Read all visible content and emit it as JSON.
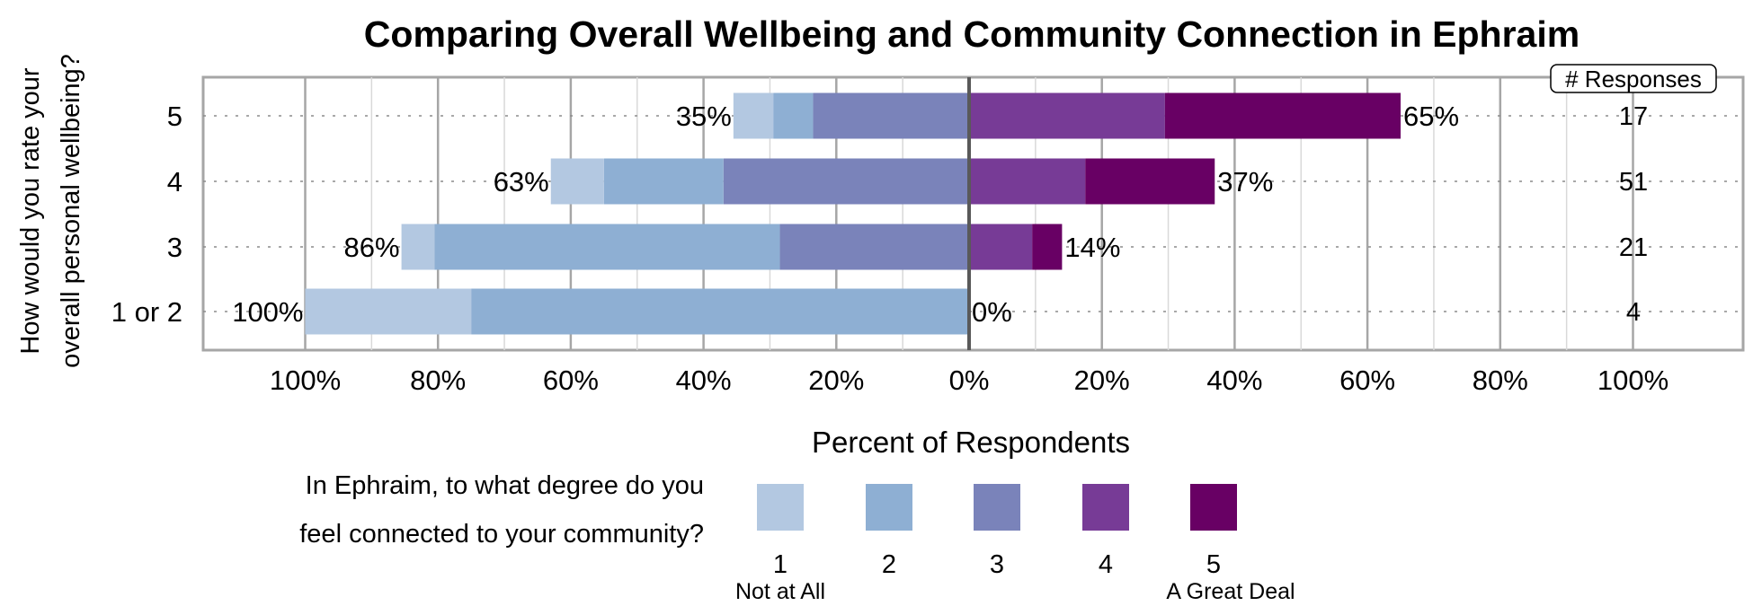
{
  "chart_data": {
    "type": "bar",
    "orientation": "horizontal-diverging-stacked",
    "title": "Comparing Overall Wellbeing and Community Connection in Ephraim",
    "xlabel": "Percent of Respondents",
    "ylabel_lines": [
      "How would you rate your",
      "overall personal wellbeing?"
    ],
    "xlim": [
      -100,
      100
    ],
    "x_ticks": [
      -100,
      -80,
      -60,
      -40,
      -20,
      0,
      20,
      40,
      60,
      80,
      100
    ],
    "x_tick_labels": [
      "100%",
      "80%",
      "60%",
      "40%",
      "20%",
      "0%",
      "20%",
      "40%",
      "60%",
      "80%",
      "100%"
    ],
    "grid": true,
    "categories": [
      "5",
      "4",
      "3",
      "1 or 2"
    ],
    "series": [
      {
        "name": "1",
        "color": "#b3c8e1",
        "side": "left",
        "values": [
          6,
          8,
          5,
          25
        ]
      },
      {
        "name": "2",
        "color": "#8eafd3",
        "side": "left",
        "values": [
          6,
          18,
          52,
          75
        ]
      },
      {
        "name": "3",
        "color": "#7a83ba",
        "side": "left",
        "values": [
          23.5,
          37,
          28.5,
          0
        ]
      },
      {
        "name": "4",
        "color": "#773b96",
        "side": "right",
        "values": [
          29.5,
          17.5,
          9.5,
          0
        ]
      },
      {
        "name": "5",
        "color": "#680064",
        "side": "right",
        "values": [
          35.5,
          19.5,
          4.5,
          0
        ]
      }
    ],
    "left_totals": [
      "35%",
      "63%",
      "86%",
      "100%"
    ],
    "right_totals": [
      "65%",
      "37%",
      "14%",
      "0%"
    ],
    "responses_header": "# Responses",
    "responses": [
      "17",
      "51",
      "21",
      "4"
    ],
    "legend": {
      "title_lines": [
        "In Ephraim, to what degree do you",
        "feel connected to your community?"
      ],
      "labels": [
        "1",
        "2",
        "3",
        "4",
        "5"
      ],
      "low_anchor": "Not at All",
      "high_anchor": "A Great Deal",
      "placement": "bottom"
    }
  }
}
